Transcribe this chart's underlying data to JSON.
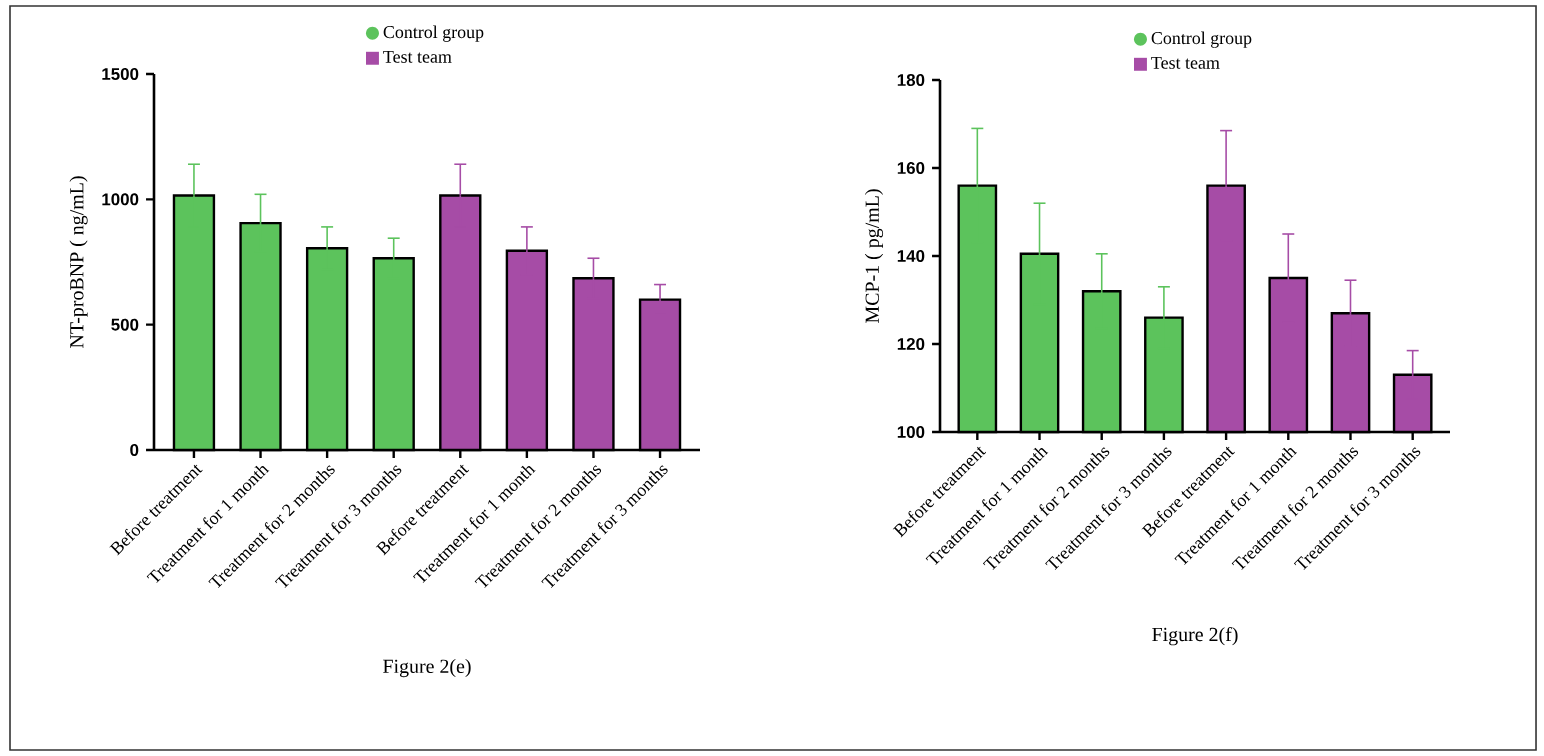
{
  "chart_data": [
    {
      "type": "bar",
      "categories": [
        "Before treatment",
        "Treatment for 1 month",
        "Treatment for 2 months",
        "Treatment for 3 months",
        "Before treatment",
        "Treatment for 1 month",
        "Treatment for 2 months",
        "Treatment for 3 months"
      ],
      "ylabel": "NT-proBNP ( ng/mL)",
      "ylim": [
        0,
        1500
      ],
      "yticks": [
        0,
        500,
        1000,
        1500
      ],
      "legend": "top",
      "annotations": [
        "Figure 2(e)"
      ],
      "series": [
        {
          "name": "Control group",
          "color": "#5cc35c",
          "marker": "circle",
          "values": [
            1015,
            905,
            805,
            765,
            null,
            null,
            null,
            null
          ],
          "errors": [
            125,
            115,
            85,
            80,
            null,
            null,
            null,
            null
          ]
        },
        {
          "name": "Test team",
          "color": "#a64ca6",
          "marker": "square",
          "values": [
            null,
            null,
            null,
            null,
            1015,
            795,
            685,
            600
          ],
          "errors": [
            null,
            null,
            null,
            null,
            125,
            95,
            80,
            60
          ]
        }
      ]
    },
    {
      "type": "bar",
      "categories": [
        "Before treatment",
        "Treatment for 1 month",
        "Treatment for 2 months",
        "Treatment for 3 months",
        "Before treatment",
        "Treatment for 1 month",
        "Treatment for 2 months",
        "Treatment for 3 months"
      ],
      "ylabel": "MCP-1 ( pg/mL)",
      "ylim": [
        100,
        180
      ],
      "yticks": [
        100,
        120,
        140,
        160,
        180
      ],
      "legend": "top",
      "annotations": [
        "Figure 2(f)"
      ],
      "series": [
        {
          "name": "Control group",
          "color": "#5cc35c",
          "marker": "circle",
          "values": [
            156,
            140.5,
            132,
            126,
            null,
            null,
            null,
            null
          ],
          "errors": [
            13,
            11.5,
            8.5,
            7,
            null,
            null,
            null,
            null
          ]
        },
        {
          "name": "Test team",
          "color": "#a64ca6",
          "marker": "square",
          "values": [
            null,
            null,
            null,
            null,
            156,
            135,
            127,
            113
          ],
          "errors": [
            null,
            null,
            null,
            null,
            12.5,
            10,
            7.5,
            5.5
          ]
        }
      ]
    }
  ]
}
